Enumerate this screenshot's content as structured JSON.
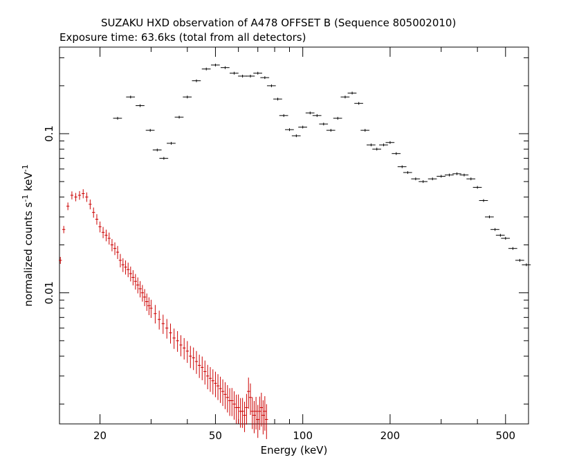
{
  "chart_data": {
    "type": "scatter",
    "title": "SUZAKU HXD observation of A478 OFFSET B (Sequence 805002010)",
    "subtitle": "Exposure time: 63.6ks (total from all detectors)",
    "xlabel": "Energy (keV)",
    "ylabel": "normalized counts s^-1 keV^-1",
    "xscale": "log",
    "yscale": "log",
    "xlim": [
      14.5,
      600
    ],
    "ylim": [
      0.0015,
      0.35
    ],
    "xticks": [
      20,
      50,
      100,
      200,
      500
    ],
    "xtick_labels": [
      "20",
      "50",
      "100",
      "200",
      "500"
    ],
    "yticks": [
      0.01,
      0.1
    ],
    "ytick_labels": [
      "0.01",
      "0.1"
    ],
    "grid": false,
    "legend": "none",
    "series": [
      {
        "color": "#000000",
        "x": [
          23,
          25.5,
          27.5,
          29.8,
          31.5,
          33.2,
          35.2,
          37.5,
          40,
          43,
          46.5,
          50,
          54,
          58,
          62,
          66,
          70,
          74,
          78,
          82,
          86,
          90,
          95,
          100,
          106,
          112,
          118,
          125,
          132,
          140,
          148,
          156,
          164,
          172,
          180,
          190,
          200,
          210,
          220,
          230,
          245,
          260,
          280,
          300,
          320,
          340,
          360,
          380,
          400,
          420,
          440,
          460,
          480,
          500,
          530,
          560,
          590
        ],
        "y": [
          0.125,
          0.17,
          0.15,
          0.105,
          0.079,
          0.07,
          0.087,
          0.127,
          0.17,
          0.215,
          0.255,
          0.27,
          0.26,
          0.24,
          0.23,
          0.23,
          0.24,
          0.225,
          0.2,
          0.165,
          0.13,
          0.106,
          0.097,
          0.11,
          0.135,
          0.13,
          0.115,
          0.105,
          0.125,
          0.17,
          0.18,
          0.155,
          0.105,
          0.085,
          0.08,
          0.085,
          0.088,
          0.075,
          0.062,
          0.057,
          0.052,
          0.05,
          0.052,
          0.054,
          0.055,
          0.056,
          0.055,
          0.052,
          0.046,
          0.038,
          0.03,
          0.025,
          0.023,
          0.022,
          0.019,
          0.016,
          0.015
        ]
      },
      {
        "color": "#cc0000",
        "x": [
          14.6,
          15,
          15.5,
          16,
          16.5,
          17,
          17.5,
          18,
          18.5,
          19,
          19.5,
          20,
          20.5,
          21,
          21.5,
          22,
          22.5,
          23,
          23.5,
          24,
          24.5,
          25,
          25.5,
          26,
          26.5,
          27,
          27.5,
          28,
          28.5,
          29,
          29.5,
          30,
          31,
          32,
          33,
          34,
          35,
          36,
          37,
          38,
          39,
          40,
          41,
          42,
          43,
          44,
          45,
          46,
          47,
          48,
          49,
          50,
          51,
          52,
          53,
          54,
          55,
          56,
          57,
          58,
          59,
          60,
          61,
          62,
          63,
          64,
          65,
          66,
          67,
          68,
          69,
          70,
          71,
          72,
          73,
          74,
          75
        ],
        "y": [
          0.016,
          0.025,
          0.035,
          0.041,
          0.04,
          0.041,
          0.042,
          0.04,
          0.036,
          0.032,
          0.029,
          0.026,
          0.024,
          0.023,
          0.022,
          0.02,
          0.019,
          0.018,
          0.016,
          0.015,
          0.0145,
          0.014,
          0.0132,
          0.0125,
          0.0118,
          0.0112,
          0.0106,
          0.01,
          0.0094,
          0.0088,
          0.0083,
          0.008,
          0.0074,
          0.0068,
          0.0064,
          0.006,
          0.0056,
          0.0052,
          0.005,
          0.0047,
          0.0045,
          0.0043,
          0.004,
          0.0039,
          0.0037,
          0.0035,
          0.0034,
          0.0032,
          0.003,
          0.0029,
          0.0028,
          0.0027,
          0.0026,
          0.0025,
          0.0024,
          0.0023,
          0.0022,
          0.0021,
          0.0021,
          0.002,
          0.0019,
          0.0019,
          0.0018,
          0.0018,
          0.0017,
          0.0019,
          0.0024,
          0.0022,
          0.0018,
          0.0017,
          0.0018,
          0.0016,
          0.0018,
          0.0019,
          0.0017,
          0.0018,
          0.0016
        ]
      }
    ]
  }
}
